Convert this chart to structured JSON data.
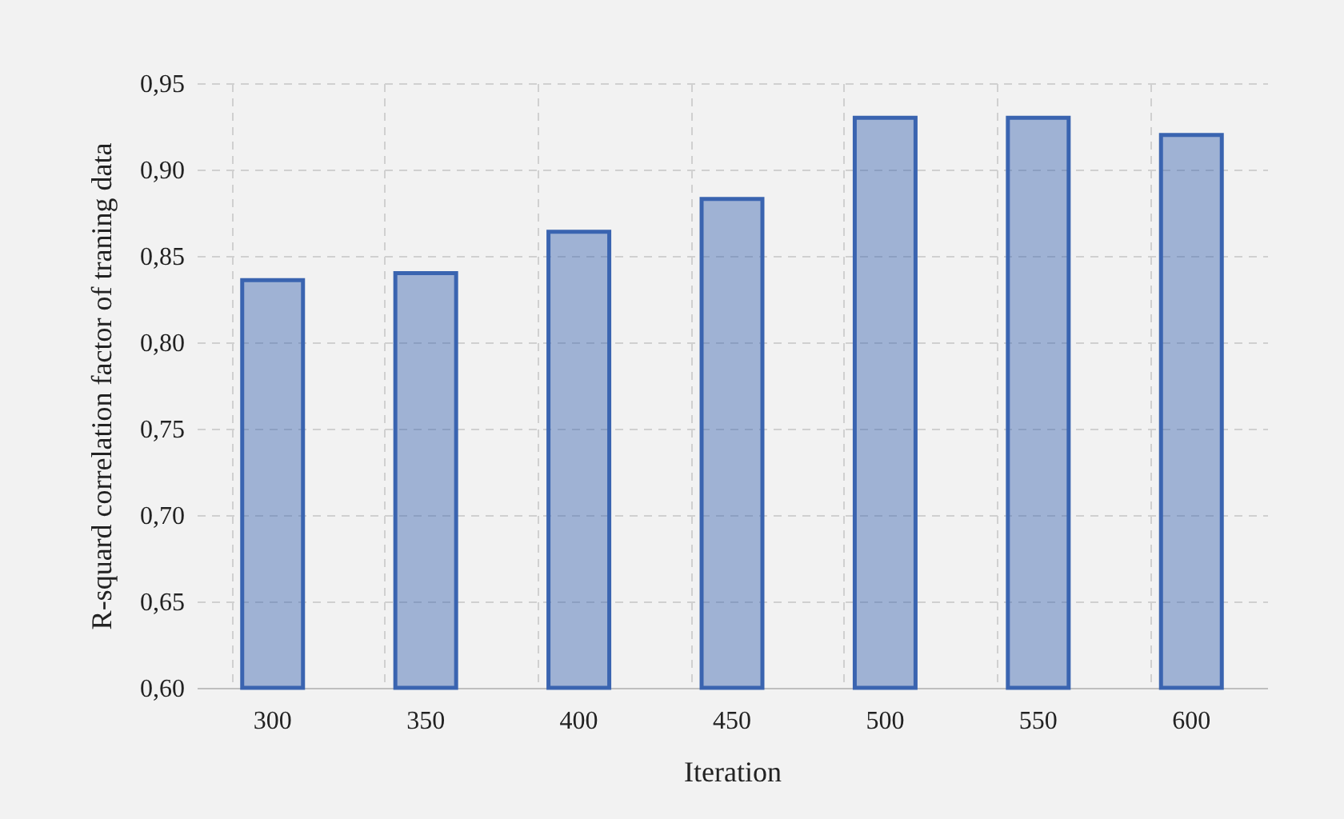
{
  "chart_data": {
    "type": "bar",
    "xlabel": "Iteration",
    "ylabel": "R-squard correlation factor of traning data",
    "categories": [
      "300",
      "350",
      "400",
      "450",
      "500",
      "550",
      "600"
    ],
    "series": [
      {
        "color": "#3a64b0",
        "values": [
          0.836,
          0.84,
          0.864,
          0.883,
          0.93,
          0.93,
          0.92
        ]
      }
    ],
    "ylim": [
      0.6,
      0.95
    ],
    "yticks": [
      {
        "value": 0.6,
        "label": "0,60"
      },
      {
        "value": 0.65,
        "label": "0,65"
      },
      {
        "value": 0.7,
        "label": "0,70"
      },
      {
        "value": 0.75,
        "label": "0,75"
      },
      {
        "value": 0.8,
        "label": "0,80"
      },
      {
        "value": 0.85,
        "label": "0,85"
      },
      {
        "value": 0.9,
        "label": "0,90"
      },
      {
        "value": 0.95,
        "label": "0,95"
      }
    ],
    "grid": true
  }
}
